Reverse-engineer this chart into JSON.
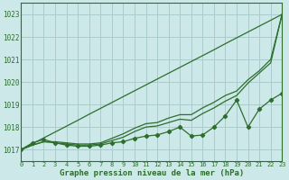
{
  "bg_color": "#cce8e8",
  "grid_color": "#aacccc",
  "line_color": "#2d6e2d",
  "text_color": "#2d6e2d",
  "xlabel": "Graphe pression niveau de la mer (hPa)",
  "xlim": [
    0,
    23
  ],
  "ylim": [
    1016.5,
    1023.5
  ],
  "yticks": [
    1017,
    1018,
    1019,
    1020,
    1021,
    1022,
    1023
  ],
  "xticks": [
    0,
    1,
    2,
    3,
    4,
    5,
    6,
    7,
    8,
    9,
    10,
    11,
    12,
    13,
    14,
    15,
    16,
    17,
    18,
    19,
    20,
    21,
    22,
    23
  ],
  "line_straight": [
    1017.0,
    1017.26,
    1017.52,
    1017.78,
    1018.04,
    1018.3,
    1018.57,
    1018.83,
    1019.09,
    1019.35,
    1019.61,
    1019.87,
    1020.13,
    1020.39,
    1020.65,
    1020.91,
    1021.17,
    1021.43,
    1021.7,
    1021.96,
    1022.22,
    1022.48,
    1022.74,
    1023.0
  ],
  "line_mid1": [
    1017.0,
    1017.2,
    1017.35,
    1017.35,
    1017.3,
    1017.25,
    1017.25,
    1017.3,
    1017.5,
    1017.7,
    1017.95,
    1018.15,
    1018.2,
    1018.4,
    1018.55,
    1018.55,
    1018.85,
    1019.1,
    1019.4,
    1019.6,
    1020.1,
    1020.5,
    1021.0,
    1023.0
  ],
  "line_mid2": [
    1017.0,
    1017.2,
    1017.35,
    1017.3,
    1017.25,
    1017.2,
    1017.2,
    1017.25,
    1017.4,
    1017.55,
    1017.8,
    1018.0,
    1018.05,
    1018.2,
    1018.35,
    1018.3,
    1018.6,
    1018.85,
    1019.15,
    1019.4,
    1019.95,
    1020.4,
    1020.85,
    1023.0
  ],
  "line_marker": [
    1017.0,
    1017.3,
    1017.45,
    1017.3,
    1017.2,
    1017.15,
    1017.15,
    1017.2,
    1017.3,
    1017.35,
    1017.5,
    1017.6,
    1017.65,
    1017.8,
    1018.0,
    1017.6,
    1017.65,
    1018.0,
    1018.5,
    1019.2,
    1018.0,
    1018.8,
    1019.2,
    1019.5
  ]
}
